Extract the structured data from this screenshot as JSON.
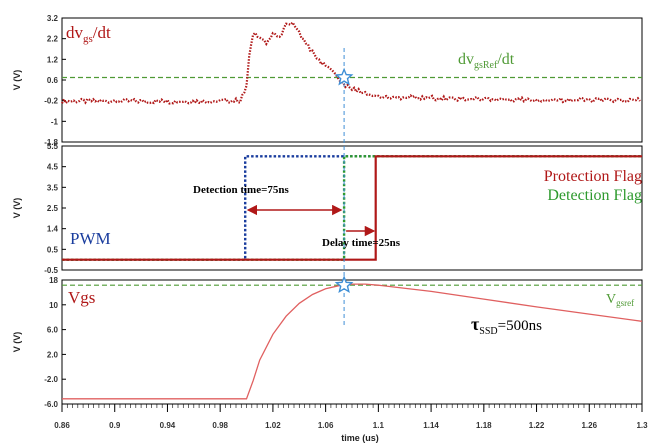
{
  "colors": {
    "dvgs": "#b01818",
    "ref_dash": "#4f9a35",
    "pwm": "#1a3d9e",
    "protection": "#b01818",
    "detection": "#2e9a2e",
    "vgs": "#e06060",
    "marker_line": "#3f8fd6",
    "star": "#3f8fd6",
    "arrow": "#b01818"
  },
  "chart_data": [
    {
      "type": "scatter",
      "id": "panel_dvgs",
      "ylabel": "V (V)",
      "ylim": [
        -1.8,
        3.2
      ],
      "yticks": [
        "3.2",
        "2.2",
        "1.2",
        "0.6",
        "-0.2",
        "-1",
        "-1.8"
      ],
      "xlim": [
        0.86,
        1.3
      ],
      "grid": false,
      "labels": {
        "signal_main": "dv",
        "signal_sub": "gs",
        "signal_tail": "/dt",
        "ref_main": "dv",
        "ref_sub": "gsRef",
        "ref_tail": "/dt"
      },
      "reference_level": 0.8,
      "series": [
        {
          "style": "dotted",
          "x": [
            0.86,
            0.9,
            0.94,
            0.98,
            0.995,
            1.0,
            1.002,
            1.005,
            1.01,
            1.015,
            1.02,
            1.025,
            1.03,
            1.035,
            1.04,
            1.045,
            1.05,
            1.055,
            1.06,
            1.065,
            1.07,
            1.075,
            1.08,
            1.085,
            1.09,
            1.1,
            1.12,
            1.16,
            1.2,
            1.24,
            1.28,
            1.3
          ],
          "y": [
            -0.15,
            -0.15,
            -0.16,
            -0.15,
            -0.12,
            0.4,
            1.6,
            2.6,
            2.4,
            2.2,
            2.6,
            2.4,
            2.9,
            3.0,
            2.6,
            2.2,
            1.8,
            1.5,
            1.25,
            1.0,
            0.8,
            0.5,
            0.35,
            0.25,
            0.15,
            0.05,
            0.0,
            -0.05,
            -0.08,
            -0.1,
            -0.12,
            -0.13
          ]
        }
      ]
    },
    {
      "type": "line",
      "id": "panel_flags",
      "ylabel": "V (V)",
      "ylim": [
        -0.5,
        5.5
      ],
      "yticks": [
        "5.5",
        "4.5",
        "3.5",
        "2.5",
        "1.4",
        "0.5",
        "-0.5"
      ],
      "xlim": [
        0.86,
        1.3
      ],
      "grid": false,
      "labels": {
        "pwm": "PWM",
        "protection": "Protection Flag",
        "detection": "Detection Flag",
        "detection_time": "Detection time=75ns",
        "delay_time": "Delay time=25ns"
      },
      "series": [
        {
          "style": "dotted",
          "key": "pwm",
          "x": [
            0.86,
            0.999,
            0.999,
            1.074,
            1.074,
            1.3
          ],
          "y": [
            0,
            0,
            5.0,
            5.0,
            5.0,
            5.0
          ]
        },
        {
          "style": "dotted",
          "key": "detection",
          "x": [
            0.86,
            1.074,
            1.074,
            1.3
          ],
          "y": [
            0,
            0,
            5.0,
            5.0
          ]
        },
        {
          "style": "solid",
          "key": "protection",
          "x": [
            0.86,
            1.098,
            1.098,
            1.3
          ],
          "y": [
            0,
            0,
            5.0,
            5.0
          ]
        }
      ],
      "annotations": {
        "detection_arrow": [
          0.999,
          1.074
        ],
        "delay_arrow": [
          1.074,
          1.098
        ]
      }
    },
    {
      "type": "line",
      "id": "panel_vgs",
      "ylabel": "V (V)",
      "xlabel": "time (us)",
      "ylim": [
        -6.0,
        18.0
      ],
      "yticks": [
        "18",
        "10",
        "6.0",
        "2.0",
        "-2.0",
        "-6.0"
      ],
      "xlim": [
        0.86,
        1.3
      ],
      "xticks": [
        "0.86",
        "0.9",
        "0.94",
        "0.98",
        "1.02",
        "1.06",
        "1.1",
        "1.14",
        "1.18",
        "1.22",
        "1.26",
        "1.3"
      ],
      "grid": false,
      "labels": {
        "signal": "Vgs",
        "ref_main": "V",
        "ref_sub": "gsref",
        "tau_main": "τ",
        "tau_sub": "SSD",
        "tau_tail": "=500ns"
      },
      "reference_level": 17.0,
      "marker_x": 1.074,
      "series": [
        {
          "style": "solid",
          "x": [
            0.86,
            0.9,
            0.94,
            0.98,
            1.0,
            1.005,
            1.01,
            1.02,
            1.03,
            1.04,
            1.05,
            1.06,
            1.07,
            1.08,
            1.09,
            1.1,
            1.14,
            1.18,
            1.22,
            1.26,
            1.3
          ],
          "y": [
            -5.0,
            -5.0,
            -5.0,
            -5.0,
            -5.0,
            -1.5,
            2.5,
            7.5,
            11.0,
            13.5,
            15.2,
            16.3,
            16.9,
            17.2,
            17.2,
            17.0,
            15.8,
            14.3,
            12.8,
            11.4,
            10.0
          ]
        }
      ]
    }
  ]
}
